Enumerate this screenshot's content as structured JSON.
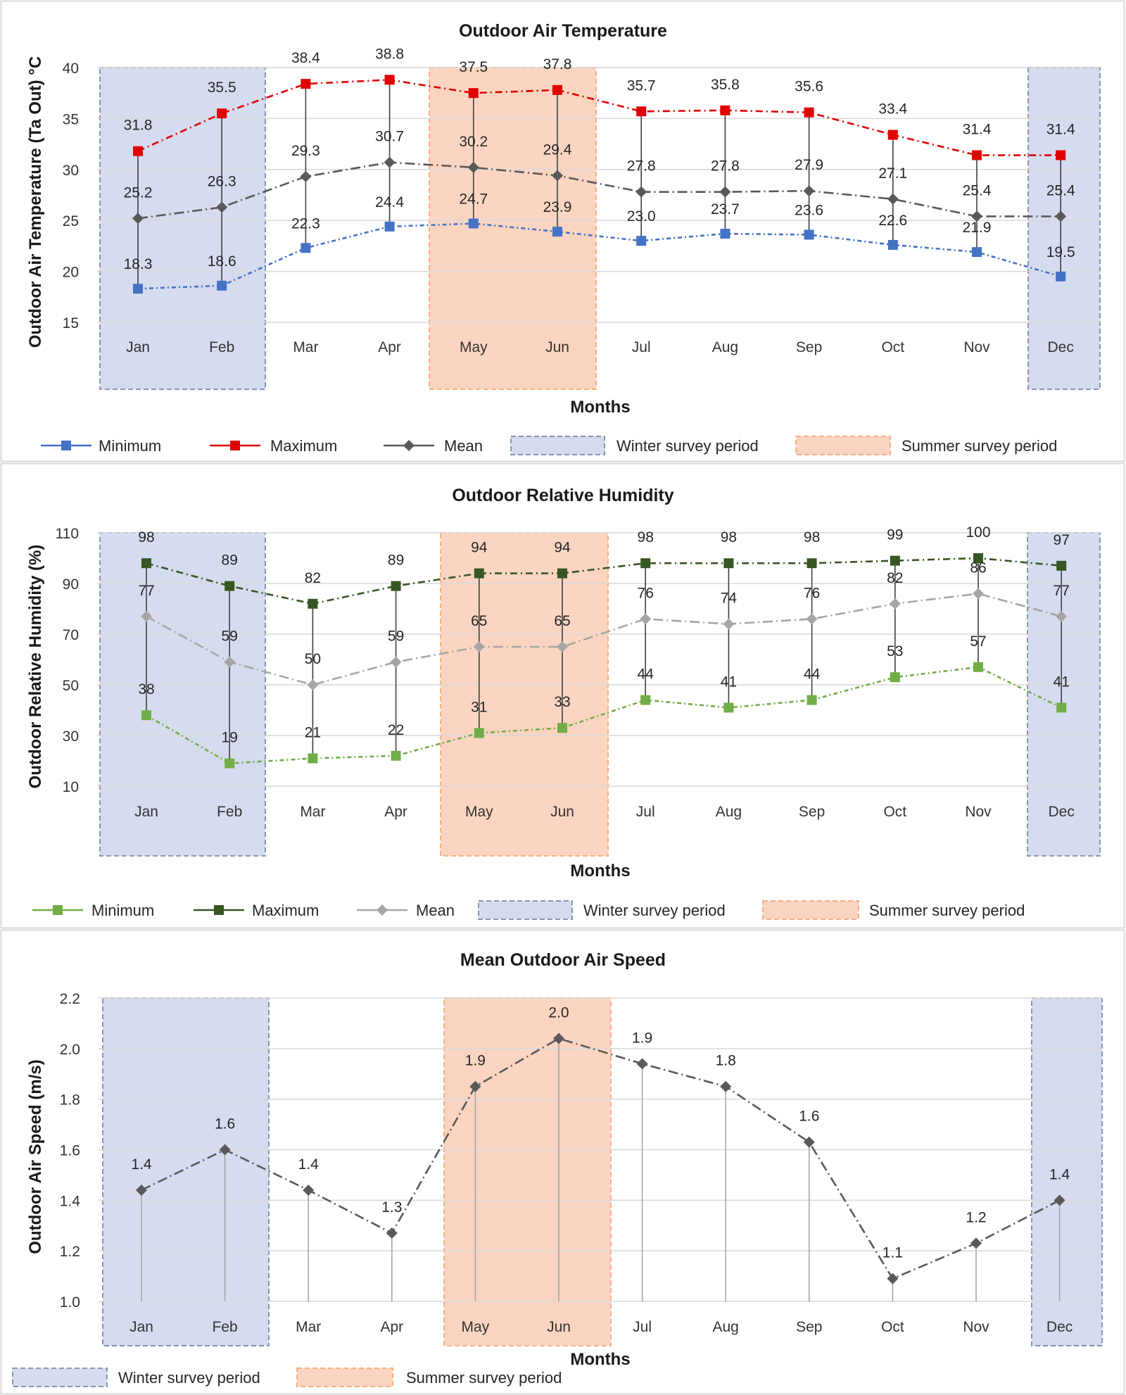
{
  "colors": {
    "temp_min": "#4472c4",
    "temp_max": "#e00000",
    "temp_mean": "#595959",
    "rh_min": "#70ad47",
    "rh_max": "#375623",
    "rh_mean": "#a6a6a6",
    "speed_mean": "#595959",
    "winter_fill": "#d6dcef",
    "winter_stroke": "#8497b0",
    "summer_fill": "#fbd5c1",
    "summer_stroke": "#f4b183",
    "grid": "#d9d9d9",
    "drop_line": "#404040"
  },
  "chart_data": [
    {
      "type": "line",
      "title": "Outdoor Air Temperature",
      "xlabel": "Months",
      "ylabel": "Outdoor Air Temperature (Ta Out) °C",
      "categories": [
        "Jan",
        "Feb",
        "Mar",
        "Apr",
        "May",
        "Jun",
        "Jul",
        "Aug",
        "Sep",
        "Oct",
        "Nov",
        "Dec"
      ],
      "ylim": [
        15,
        40
      ],
      "yticks": [
        "15",
        "20",
        "25",
        "30",
        "35",
        "40"
      ],
      "grid": true,
      "series": [
        {
          "name": "Minimum",
          "values": [
            18.3,
            18.6,
            22.3,
            24.4,
            24.7,
            23.9,
            23.0,
            23.7,
            23.6,
            22.6,
            21.9,
            19.5
          ],
          "labels": [
            "18.3",
            "18.6",
            "22.3",
            "24.4",
            "24.7",
            "23.9",
            "23.0",
            "23.7",
            "23.6",
            "22.6",
            "21.9",
            "19.5"
          ],
          "marker": "square"
        },
        {
          "name": "Maximum",
          "values": [
            31.8,
            35.5,
            38.4,
            38.8,
            37.5,
            37.8,
            35.7,
            35.8,
            35.6,
            33.4,
            31.4,
            31.4
          ],
          "labels": [
            "31.8",
            "35.5",
            "38.4",
            "38.8",
            "37.5",
            "37.8",
            "35.7",
            "35.8",
            "35.6",
            "33.4",
            "31.4",
            "31.4"
          ],
          "marker": "square"
        },
        {
          "name": "Mean",
          "values": [
            25.2,
            26.3,
            29.3,
            30.7,
            30.2,
            29.4,
            27.8,
            27.8,
            27.9,
            27.1,
            25.4,
            25.4
          ],
          "labels": [
            "25.2",
            "26.3",
            "29.3",
            "30.7",
            "30.2",
            "29.4",
            "27.8",
            "27.8",
            "27.9",
            "27.1",
            "25.4",
            "25.4"
          ],
          "marker": "diamond"
        }
      ],
      "legend": [
        "Minimum",
        "Maximum",
        "Mean",
        "Winter survey period",
        "Summer survey period"
      ],
      "legend_position": "bottom"
    },
    {
      "type": "line",
      "title": "Outdoor Relative Humidity",
      "xlabel": "Months",
      "ylabel": "Outdoor Relative Humidity (%)",
      "categories": [
        "Jan",
        "Feb",
        "Mar",
        "Apr",
        "May",
        "Jun",
        "Jul",
        "Aug",
        "Sep",
        "Oct",
        "Nov",
        "Dec"
      ],
      "ylim": [
        10,
        110
      ],
      "yticks": [
        "10",
        "30",
        "50",
        "70",
        "90",
        "110"
      ],
      "grid": true,
      "series": [
        {
          "name": "Minimum",
          "values": [
            38,
            19,
            21,
            22,
            31,
            33,
            44,
            41,
            44,
            53,
            57,
            41
          ],
          "labels": [
            "38",
            "19",
            "21",
            "22",
            "31",
            "33",
            "44",
            "41",
            "44",
            "53",
            "57",
            "41"
          ],
          "marker": "square"
        },
        {
          "name": "Maximum",
          "values": [
            98,
            89,
            82,
            89,
            94,
            94,
            98,
            98,
            98,
            99,
            100,
            97
          ],
          "labels": [
            "98",
            "89",
            "82",
            "89",
            "94",
            "94",
            "98",
            "98",
            "98",
            "99",
            "100",
            "97"
          ],
          "marker": "square"
        },
        {
          "name": "Mean",
          "values": [
            77,
            59,
            50,
            59,
            65,
            65,
            76,
            74,
            76,
            82,
            86,
            77
          ],
          "labels": [
            "77",
            "59",
            "50",
            "59",
            "65",
            "65",
            "76",
            "74",
            "76",
            "82",
            "86",
            "77"
          ],
          "marker": "diamond"
        }
      ],
      "legend": [
        "Minimum",
        "Maximum",
        "Mean",
        "Winter survey period",
        "Summer survey period"
      ],
      "legend_position": "bottom"
    },
    {
      "type": "line",
      "title": "Mean Outdoor Air Speed",
      "xlabel": "Months",
      "ylabel": "Outdoor Air Speed (m/s)",
      "categories": [
        "Jan",
        "Feb",
        "Mar",
        "Apr",
        "May",
        "Jun",
        "Jul",
        "Aug",
        "Sep",
        "Oct",
        "Nov",
        "Dec"
      ],
      "ylim": [
        1.0,
        2.2
      ],
      "yticks": [
        "1.0",
        "1.2",
        "1.4",
        "1.6",
        "1.8",
        "2.0",
        "2.2"
      ],
      "grid": true,
      "series": [
        {
          "values": [
            1.44,
            1.6,
            1.44,
            1.27,
            1.85,
            2.04,
            1.94,
            1.85,
            1.63,
            1.09,
            1.23,
            1.4
          ],
          "labels": [
            "1.4",
            "1.6",
            "1.4",
            "1.3",
            "1.9",
            "2.0",
            "1.9",
            "1.8",
            "1.6",
            "1.1",
            "1.2",
            "1.4"
          ],
          "marker": "diamond"
        }
      ],
      "legend": [
        "Winter survey period",
        "Summer survey period"
      ],
      "legend_position": "bottom"
    }
  ]
}
